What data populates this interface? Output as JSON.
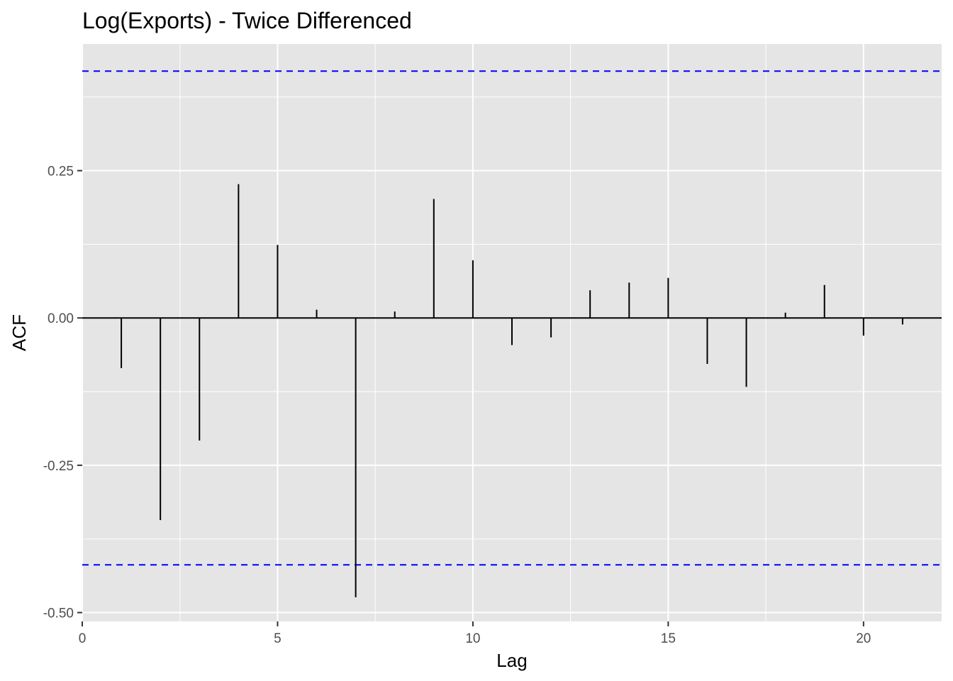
{
  "chart_data": {
    "type": "bar",
    "title": "Log(Exports) - Twice Differenced",
    "xlabel": "Lag",
    "ylabel": "ACF",
    "lags": [
      1,
      2,
      3,
      4,
      5,
      6,
      7,
      8,
      9,
      10,
      11,
      12,
      13,
      14,
      15,
      16,
      17,
      18,
      19,
      20,
      21
    ],
    "values": [
      -0.085,
      -0.343,
      -0.208,
      0.227,
      0.124,
      0.014,
      -0.474,
      0.011,
      0.202,
      0.098,
      -0.046,
      -0.033,
      0.047,
      0.06,
      0.068,
      -0.078,
      -0.117,
      0.009,
      0.056,
      -0.03,
      -0.011
    ],
    "confidence_bound": 0.419,
    "xlim": [
      0,
      22
    ],
    "ylim": [
      -0.515,
      0.465
    ],
    "xticks": [
      0,
      5,
      10,
      15,
      20
    ],
    "yticks": [
      -0.5,
      -0.25,
      0,
      0.25
    ],
    "ytick_labels": [
      "-0.50",
      "-0.25",
      "0.00",
      "0.25"
    ],
    "grid": true,
    "bound_color": "#0000ff",
    "panel_color": "#e5e5e5"
  }
}
